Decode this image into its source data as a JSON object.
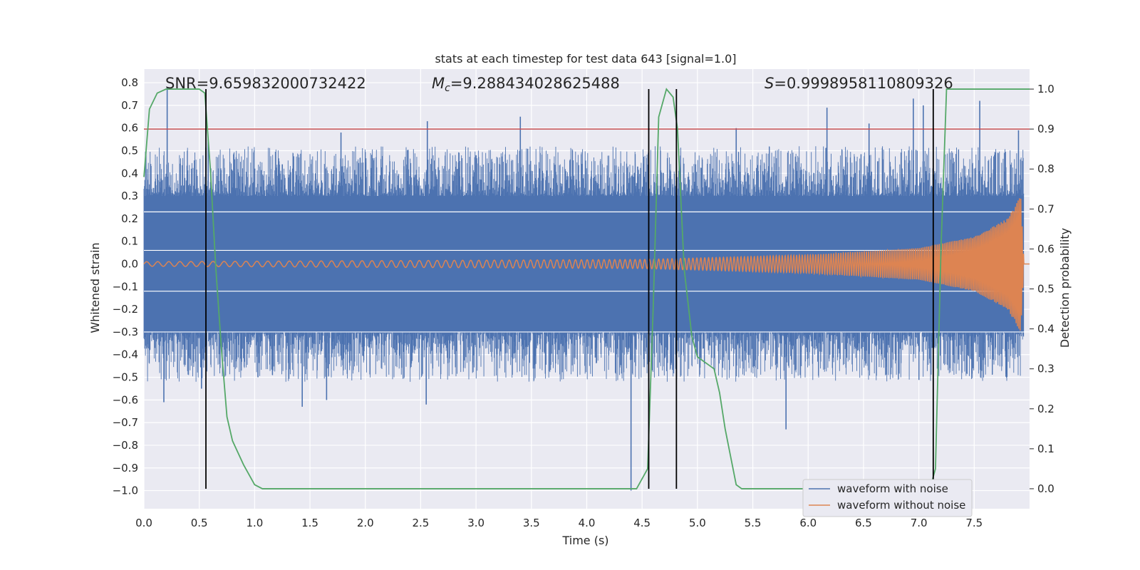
{
  "chart_data": {
    "type": "line",
    "title": "stats at each timestep for test data 643 [signal=1.0]",
    "xlabel": "Time (s)",
    "ylabel": "Whitened strain",
    "y2label": "Detection probability",
    "xlim": [
      0.0,
      8.0
    ],
    "ylim": [
      -1.08,
      0.86
    ],
    "y2lim": [
      -0.05,
      1.05
    ],
    "xticks": [
      "0.0",
      "0.5",
      "1.0",
      "1.5",
      "2.0",
      "2.5",
      "3.0",
      "3.5",
      "4.0",
      "4.5",
      "5.0",
      "5.5",
      "6.0",
      "6.5",
      "7.0",
      "7.5"
    ],
    "yticks": [
      "0.8",
      "0.7",
      "0.6",
      "0.5",
      "0.4",
      "0.3",
      "0.2",
      "0.1",
      "0.0",
      "-0.1",
      "-0.2",
      "-0.3",
      "-0.4",
      "-0.5",
      "-0.6",
      "-0.7",
      "-0.8",
      "-0.9",
      "-1.0"
    ],
    "y2ticks": [
      "1.0",
      "0.9",
      "0.8",
      "0.7",
      "0.6",
      "0.5",
      "0.4",
      "0.3",
      "0.2",
      "0.1",
      "0.0"
    ],
    "annotations": {
      "snr": "SNR=9.659832000732422",
      "mc_symbol": "M",
      "mc_sub": "c",
      "mc_value": "=9.288434028625488",
      "s_symbol": "S",
      "s_value": "=0.9998958110809326"
    },
    "threshold_y2": 0.9,
    "threshold_color": "#c44e52",
    "vlines_x": [
      0.56,
      4.56,
      4.81,
      7.13
    ],
    "series": [
      {
        "name": "waveform with noise",
        "color": "#4c72b0",
        "band": [
          -0.3,
          0.3
        ],
        "outliers": [
          {
            "x": 0.21,
            "y": 0.78
          },
          {
            "x": 0.58,
            "y": 0.55
          },
          {
            "x": 0.52,
            "y": -0.55
          },
          {
            "x": 0.18,
            "y": -0.61
          },
          {
            "x": 1.03,
            "y": -0.5
          },
          {
            "x": 1.25,
            "y": 0.44
          },
          {
            "x": 1.4,
            "y": 0.47
          },
          {
            "x": 1.43,
            "y": -0.63
          },
          {
            "x": 1.65,
            "y": -0.6
          },
          {
            "x": 1.78,
            "y": 0.58
          },
          {
            "x": 2.55,
            "y": -0.62
          },
          {
            "x": 2.56,
            "y": 0.63
          },
          {
            "x": 3.0,
            "y": 0.48
          },
          {
            "x": 3.4,
            "y": 0.65
          },
          {
            "x": 4.4,
            "y": -1.0
          },
          {
            "x": 4.46,
            "y": 0.43
          },
          {
            "x": 5.35,
            "y": 0.6
          },
          {
            "x": 5.8,
            "y": -0.73
          },
          {
            "x": 6.17,
            "y": 0.69
          },
          {
            "x": 6.55,
            "y": 0.62
          },
          {
            "x": 6.95,
            "y": 0.73
          },
          {
            "x": 7.04,
            "y": 0.7
          },
          {
            "x": 7.55,
            "y": 0.72
          },
          {
            "x": 7.9,
            "y": 0.59
          }
        ]
      },
      {
        "name": "waveform without noise",
        "color": "#dd8452",
        "description_points": [
          {
            "x": 0.0,
            "y": 0.01
          },
          {
            "x": 4.5,
            "y": 0.02
          },
          {
            "x": 6.0,
            "y": 0.04
          },
          {
            "x": 7.0,
            "y": 0.07
          },
          {
            "x": 7.5,
            "y": 0.12
          },
          {
            "x": 7.8,
            "y": 0.2
          },
          {
            "x": 7.92,
            "y": 0.3
          },
          {
            "x": 7.95,
            "y": 0.0
          },
          {
            "x": 8.0,
            "y": 0.0
          }
        ]
      },
      {
        "name": "detection probability",
        "color": "#55a868",
        "axis": "right",
        "x": [
          0.0,
          0.05,
          0.12,
          0.2,
          0.3,
          0.4,
          0.5,
          0.55,
          0.6,
          0.65,
          0.7,
          0.75,
          0.8,
          0.9,
          1.0,
          1.07,
          1.2,
          2.0,
          2.5,
          3.0,
          3.5,
          4.0,
          4.3,
          4.45,
          4.55,
          4.6,
          4.65,
          4.72,
          4.78,
          4.82,
          4.88,
          4.95,
          5.0,
          5.05,
          5.1,
          5.15,
          5.2,
          5.25,
          5.35,
          5.4,
          5.5,
          6.0,
          6.5,
          7.0,
          7.1,
          7.15,
          7.2,
          7.25,
          7.3,
          7.5,
          8.0
        ],
        "y": [
          0.78,
          0.95,
          0.99,
          1.0,
          1.0,
          1.0,
          1.0,
          0.99,
          0.8,
          0.55,
          0.35,
          0.18,
          0.12,
          0.06,
          0.01,
          0.0,
          0.0,
          0.0,
          0.0,
          0.0,
          0.0,
          0.0,
          0.0,
          0.0,
          0.05,
          0.45,
          0.93,
          1.0,
          0.98,
          0.9,
          0.55,
          0.38,
          0.33,
          0.32,
          0.31,
          0.3,
          0.24,
          0.15,
          0.01,
          0.0,
          0.0,
          0.0,
          0.0,
          0.0,
          0.0,
          0.05,
          0.6,
          1.0,
          1.0,
          1.0,
          1.0
        ]
      }
    ],
    "legend": {
      "placement": "lower-right",
      "entries": [
        "waveform with noise",
        "waveform without noise"
      ]
    },
    "background": "#eaeaf2",
    "grid": true
  }
}
